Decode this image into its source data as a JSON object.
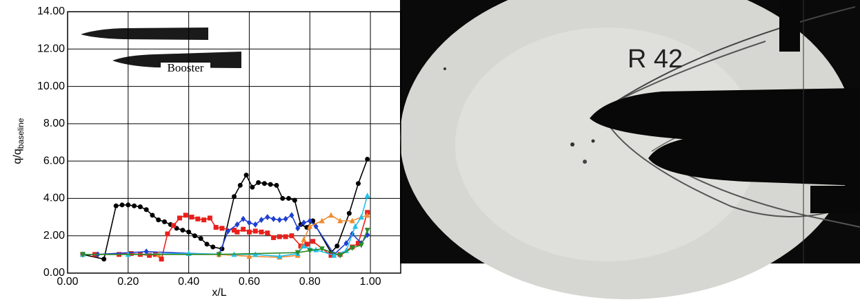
{
  "chart_data": {
    "type": "line",
    "xlabel": "x/L",
    "ylabel": "q/q",
    "ylabel_subscript": "baseline",
    "inset_label": "Booster",
    "photo_label": "R 42",
    "xlim": [
      0,
      1.1
    ],
    "ylim": [
      0,
      14
    ],
    "grid": true,
    "xticks": [
      {
        "value": 0,
        "label": "0.00"
      },
      {
        "value": 0.2,
        "label": "0.20"
      },
      {
        "value": 0.4,
        "label": "0.40"
      },
      {
        "value": 0.6,
        "label": "0.60"
      },
      {
        "value": 0.8,
        "label": "0.80"
      },
      {
        "value": 1,
        "label": "1.00"
      }
    ],
    "yticks": [
      {
        "value": 0,
        "label": "0.00"
      },
      {
        "value": 2,
        "label": "2.00"
      },
      {
        "value": 4,
        "label": "4.00"
      },
      {
        "value": 6,
        "label": "6.00"
      },
      {
        "value": 8,
        "label": "8.00"
      },
      {
        "value": 10,
        "label": "10.00"
      },
      {
        "value": 12,
        "label": "12.00"
      },
      {
        "value": 14,
        "label": "14.00"
      }
    ],
    "series": [
      {
        "color": "#000000",
        "marker": "circle",
        "x": [
          0.05,
          0.12,
          0.16,
          0.18,
          0.2,
          0.22,
          0.24,
          0.26,
          0.28,
          0.3,
          0.32,
          0.34,
          0.36,
          0.38,
          0.4,
          0.42,
          0.44,
          0.46,
          0.48,
          0.51,
          0.55,
          0.57,
          0.59,
          0.61,
          0.63,
          0.65,
          0.67,
          0.69,
          0.71,
          0.73,
          0.75,
          0.77,
          0.79,
          0.81,
          0.87,
          0.89,
          0.93,
          0.96,
          0.99
        ],
        "values": [
          1.0,
          0.75,
          3.6,
          3.65,
          3.65,
          3.6,
          3.55,
          3.4,
          3.1,
          2.85,
          2.75,
          2.6,
          2.4,
          2.3,
          2.2,
          2.0,
          1.85,
          1.55,
          1.4,
          1.3,
          4.1,
          4.7,
          5.25,
          4.6,
          4.85,
          4.8,
          4.75,
          4.7,
          4.0,
          4.0,
          3.9,
          2.6,
          2.45,
          2.8,
          1.1,
          1.45,
          3.2,
          4.8,
          6.1
        ]
      },
      {
        "color": "#e8201c",
        "marker": "square",
        "x": [
          0.05,
          0.09,
          0.17,
          0.21,
          0.24,
          0.27,
          0.29,
          0.31,
          0.33,
          0.35,
          0.37,
          0.39,
          0.41,
          0.43,
          0.45,
          0.47,
          0.49,
          0.51,
          0.55,
          0.56,
          0.58,
          0.6,
          0.62,
          0.64,
          0.66,
          0.68,
          0.7,
          0.72,
          0.74,
          0.77,
          0.79,
          0.81,
          0.87,
          0.9,
          0.94,
          0.96,
          0.99
        ],
        "values": [
          1.0,
          1.0,
          1.0,
          1.05,
          1.0,
          0.95,
          1.0,
          0.75,
          2.1,
          2.55,
          2.95,
          3.1,
          3.0,
          2.9,
          2.85,
          2.95,
          2.45,
          2.4,
          2.3,
          2.2,
          2.35,
          2.2,
          2.25,
          2.2,
          2.15,
          1.9,
          1.95,
          1.95,
          2.0,
          1.45,
          1.55,
          1.7,
          0.95,
          1.0,
          1.4,
          1.6,
          3.25
        ]
      },
      {
        "color": "#1f3fd0",
        "marker": "diamond",
        "x": [
          0.05,
          0.1,
          0.26,
          0.5,
          0.53,
          0.56,
          0.58,
          0.6,
          0.62,
          0.64,
          0.66,
          0.68,
          0.7,
          0.72,
          0.74,
          0.76,
          0.78,
          0.8,
          0.82,
          0.88,
          0.92,
          0.94,
          0.97,
          0.99
        ],
        "values": [
          1.0,
          1.0,
          1.15,
          1.0,
          2.25,
          2.6,
          2.9,
          2.7,
          2.6,
          2.85,
          3.0,
          2.9,
          2.85,
          2.9,
          3.1,
          2.4,
          2.7,
          2.8,
          2.5,
          1.0,
          1.6,
          2.1,
          1.6,
          2.05
        ]
      },
      {
        "color": "#f08a30",
        "marker": "triangle",
        "x": [
          0.05,
          0.3,
          0.5,
          0.6,
          0.7,
          0.76,
          0.78,
          0.8,
          0.84,
          0.87,
          0.9,
          0.94,
          0.97,
          0.99
        ],
        "values": [
          1.0,
          1.0,
          1.0,
          0.9,
          0.85,
          0.95,
          1.8,
          2.5,
          2.8,
          3.1,
          2.8,
          2.8,
          3.0,
          3.1
        ]
      },
      {
        "color": "#22c0e8",
        "marker": "triangle",
        "x": [
          0.05,
          0.2,
          0.4,
          0.55,
          0.62,
          0.7,
          0.76,
          0.78,
          0.8,
          0.82,
          0.88,
          0.92,
          0.95,
          0.97,
          0.99
        ],
        "values": [
          1.0,
          1.0,
          1.05,
          1.0,
          1.0,
          0.9,
          1.05,
          1.45,
          1.3,
          1.25,
          0.95,
          1.2,
          2.5,
          3.0,
          4.15
        ]
      },
      {
        "color": "#2a8a2a",
        "marker": "triangle-down",
        "x": [
          0.05,
          0.5,
          0.76,
          0.8,
          0.84,
          0.9,
          0.94,
          0.97,
          0.99
        ],
        "values": [
          1.0,
          1.0,
          1.1,
          1.2,
          1.3,
          0.95,
          1.35,
          1.5,
          2.3
        ]
      }
    ]
  }
}
